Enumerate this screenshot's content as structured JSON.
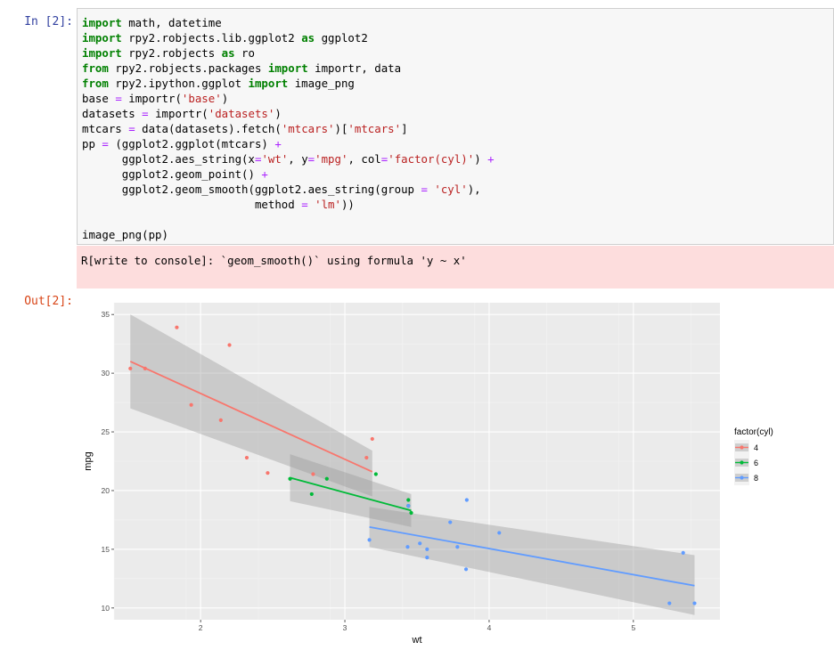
{
  "cell_in": {
    "prompt": "In [2]:",
    "lines": [
      [
        [
          "kw",
          "import"
        ],
        [
          "t",
          " math, datetime"
        ]
      ],
      [
        [
          "kw",
          "import"
        ],
        [
          "t",
          " rpy2.robjects.lib.ggplot2 "
        ],
        [
          "kw",
          "as"
        ],
        [
          "t",
          " ggplot2"
        ]
      ],
      [
        [
          "kw",
          "import"
        ],
        [
          "t",
          " rpy2.robjects "
        ],
        [
          "kw",
          "as"
        ],
        [
          "t",
          " ro"
        ]
      ],
      [
        [
          "kw",
          "from"
        ],
        [
          "t",
          " rpy2.robjects.packages "
        ],
        [
          "kw",
          "import"
        ],
        [
          "t",
          " importr, data"
        ]
      ],
      [
        [
          "kw",
          "from"
        ],
        [
          "t",
          " rpy2.ipython.ggplot "
        ],
        [
          "kw",
          "import"
        ],
        [
          "t",
          " image_png"
        ]
      ],
      [
        [
          "t",
          "base "
        ],
        [
          "op",
          "="
        ],
        [
          "t",
          " importr("
        ],
        [
          "str",
          "'base'"
        ],
        [
          "t",
          ")"
        ]
      ],
      [
        [
          "t",
          "datasets "
        ],
        [
          "op",
          "="
        ],
        [
          "t",
          " importr("
        ],
        [
          "str",
          "'datasets'"
        ],
        [
          "t",
          ")"
        ]
      ],
      [
        [
          "t",
          "mtcars "
        ],
        [
          "op",
          "="
        ],
        [
          "t",
          " data(datasets).fetch("
        ],
        [
          "str",
          "'mtcars'"
        ],
        [
          "t",
          ")["
        ],
        [
          "str",
          "'mtcars'"
        ],
        [
          "t",
          "]"
        ]
      ],
      [
        [
          "t",
          "pp "
        ],
        [
          "op",
          "="
        ],
        [
          "t",
          " (ggplot2.ggplot(mtcars) "
        ],
        [
          "op",
          "+"
        ]
      ],
      [
        [
          "t",
          "      ggplot2.aes_string(x"
        ],
        [
          "op",
          "="
        ],
        [
          "str",
          "'wt'"
        ],
        [
          "t",
          ", y"
        ],
        [
          "op",
          "="
        ],
        [
          "str",
          "'mpg'"
        ],
        [
          "t",
          ", col"
        ],
        [
          "op",
          "="
        ],
        [
          "str",
          "'factor(cyl)'"
        ],
        [
          "t",
          ") "
        ],
        [
          "op",
          "+"
        ]
      ],
      [
        [
          "t",
          "      ggplot2.geom_point() "
        ],
        [
          "op",
          "+"
        ]
      ],
      [
        [
          "t",
          "      ggplot2.geom_smooth(ggplot2.aes_string(group "
        ],
        [
          "op",
          "="
        ],
        [
          "t",
          " "
        ],
        [
          "str",
          "'cyl'"
        ],
        [
          "t",
          "),"
        ]
      ],
      [
        [
          "t",
          "                          method "
        ],
        [
          "op",
          "="
        ],
        [
          "t",
          " "
        ],
        [
          "str",
          "'lm'"
        ],
        [
          "t",
          "))"
        ]
      ],
      [
        [
          "t",
          ""
        ]
      ],
      [
        [
          "t",
          "image_png(pp)"
        ]
      ]
    ]
  },
  "stderr": {
    "text": "R[write to console]: `geom_smooth()` using formula 'y ~ x'"
  },
  "cell_out": {
    "prompt": "Out[2]:"
  },
  "chart_data": {
    "type": "scatter",
    "xlabel": "wt",
    "ylabel": "mpg",
    "xlim": [
      1.4,
      5.6
    ],
    "ylim": [
      9,
      36
    ],
    "xticks": [
      2,
      3,
      4,
      5
    ],
    "yticks": [
      10,
      15,
      20,
      25,
      30,
      35
    ],
    "grid": true,
    "legend": {
      "title": "factor(cyl)",
      "position": "right"
    },
    "series": [
      {
        "name": "4",
        "color": "#f8766d",
        "points": [
          [
            2.32,
            22.8
          ],
          [
            3.19,
            24.4
          ],
          [
            3.15,
            22.8
          ],
          [
            2.2,
            32.4
          ],
          [
            1.615,
            30.4
          ],
          [
            1.835,
            33.9
          ],
          [
            2.465,
            21.5
          ],
          [
            1.935,
            27.3
          ],
          [
            2.14,
            26.0
          ],
          [
            1.513,
            30.4
          ],
          [
            2.78,
            21.4
          ]
        ],
        "fit": {
          "x": [
            1.513,
            3.19
          ],
          "y": [
            31.0,
            21.6
          ],
          "ci_upper": [
            35.0,
            23.4
          ],
          "ci_lower": [
            27.0,
            19.5
          ]
        }
      },
      {
        "name": "6",
        "color": "#00ba38",
        "points": [
          [
            2.62,
            21.0
          ],
          [
            2.875,
            21.0
          ],
          [
            3.215,
            21.4
          ],
          [
            3.44,
            18.7
          ],
          [
            3.44,
            19.2
          ],
          [
            3.46,
            18.1
          ],
          [
            2.77,
            19.7
          ]
        ],
        "fit": {
          "x": [
            2.62,
            3.46
          ],
          "y": [
            21.1,
            18.3
          ],
          "ci_upper": [
            23.1,
            19.7
          ],
          "ci_lower": [
            19.1,
            16.9
          ]
        }
      },
      {
        "name": "8",
        "color": "#619cff",
        "points": [
          [
            3.44,
            18.7
          ],
          [
            3.57,
            14.3
          ],
          [
            4.07,
            16.4
          ],
          [
            3.73,
            17.3
          ],
          [
            3.78,
            15.2
          ],
          [
            5.25,
            10.4
          ],
          [
            5.424,
            10.4
          ],
          [
            5.345,
            14.7
          ],
          [
            3.52,
            15.5
          ],
          [
            3.435,
            15.2
          ],
          [
            3.84,
            13.3
          ],
          [
            3.845,
            19.2
          ],
          [
            3.17,
            15.8
          ],
          [
            3.57,
            15.0
          ]
        ],
        "fit": {
          "x": [
            3.17,
            5.424
          ],
          "y": [
            16.9,
            11.9
          ],
          "ci_upper": [
            18.6,
            14.5
          ],
          "ci_lower": [
            15.2,
            9.4
          ]
        }
      }
    ]
  }
}
